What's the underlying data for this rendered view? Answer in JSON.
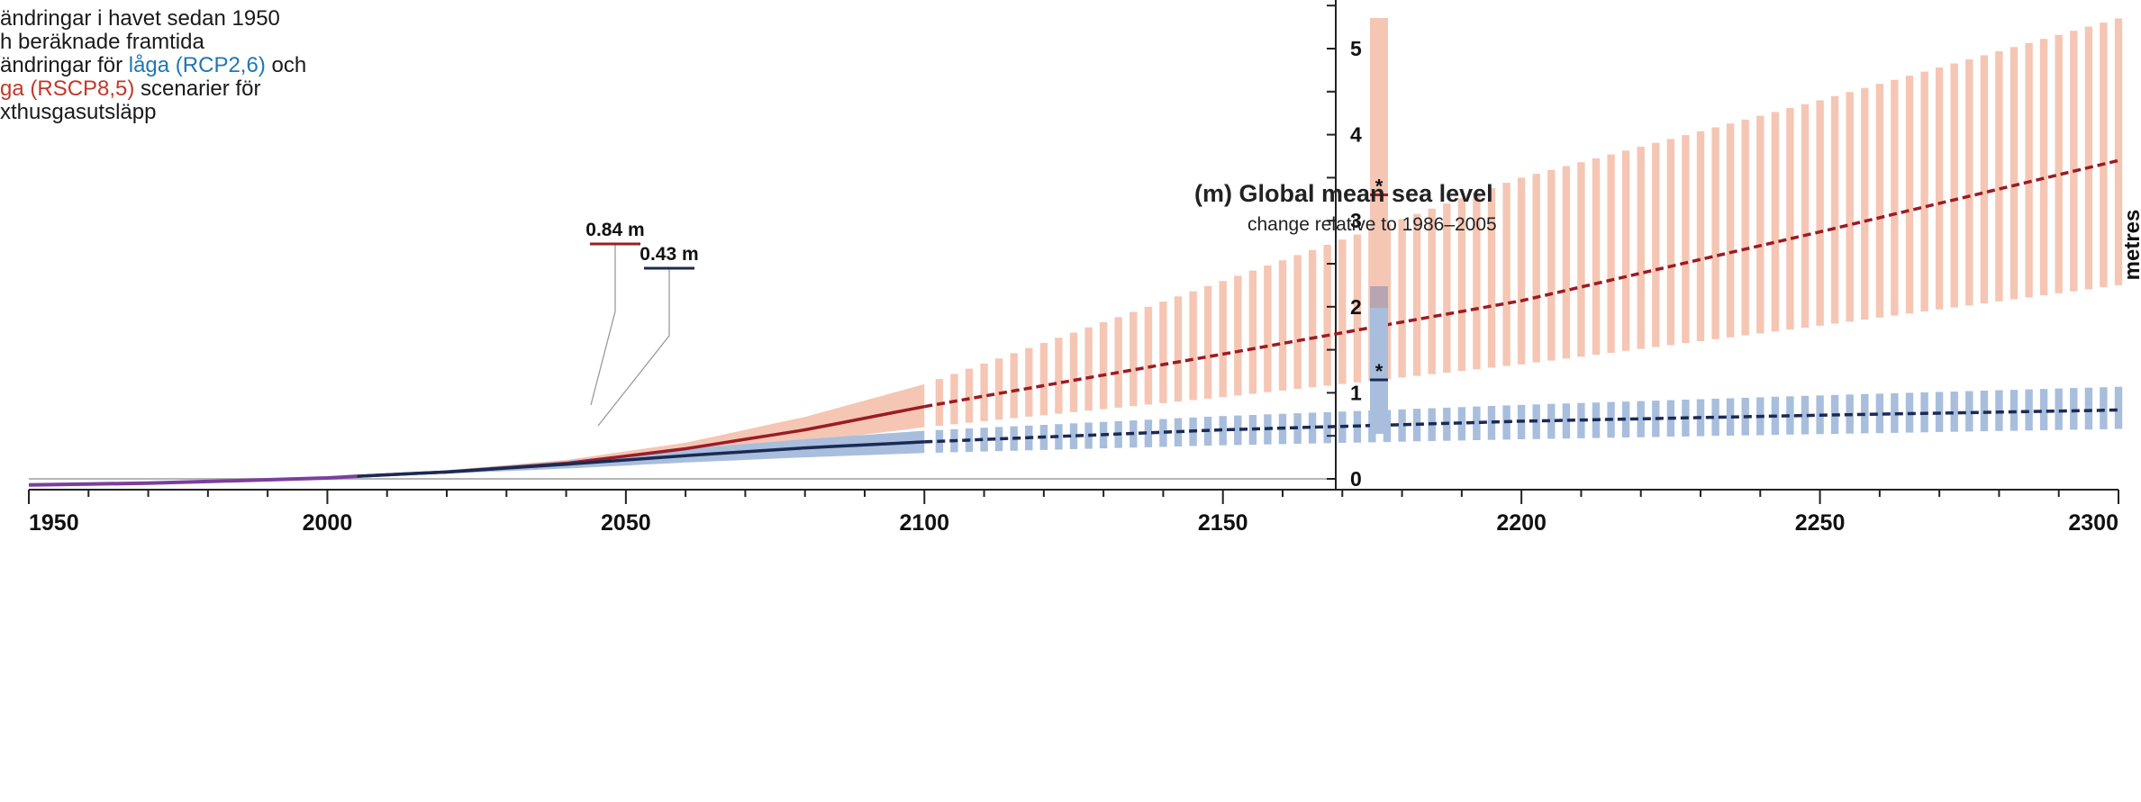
{
  "intro": {
    "line1": "ändringar i havet sedan 1950",
    "line2": "h beräknade framtida",
    "line3_prefix": "ändringar för ",
    "line3_low": "låga (RCP2,6)",
    "line3_suffix": " och",
    "line4_high": "ga (RSCP8,5)",
    "line4_suffix": " scenarier för",
    "line5": "xthusgasutsläpp",
    "low_color": "#1f77b4",
    "high_color": "#c0392b"
  },
  "chart_data": {
    "type": "line",
    "title": "(m)  Global mean sea level",
    "subtitle": "change relative to 1986–2005",
    "ylabel": "metres",
    "xlim": [
      1950,
      2300
    ],
    "ylim": [
      -0.1,
      5.5
    ],
    "xticks": [
      "1950",
      "2000",
      "2050",
      "2100",
      "2150",
      "2200",
      "2250",
      "2300"
    ],
    "yticks": [
      "0",
      "1",
      "2",
      "3",
      "4",
      "5"
    ],
    "grid": false,
    "series": [
      {
        "key": "observed",
        "color": "#7b3f9e",
        "x": [
          1950,
          1960,
          1970,
          1980,
          1990,
          2000,
          2005
        ],
        "y": [
          -0.07,
          -0.06,
          -0.05,
          -0.03,
          -0.01,
          0.01,
          0.03
        ]
      },
      {
        "key": "high",
        "color": "#9b1c24",
        "band_color": "#f5c6b4",
        "x": [
          2005,
          2020,
          2040,
          2060,
          2080,
          2100,
          2150,
          2200,
          2250,
          2300
        ],
        "y": [
          0.03,
          0.08,
          0.18,
          0.35,
          0.57,
          0.84,
          1.45,
          2.07,
          2.87,
          3.7
        ],
        "y_low": [
          0.03,
          0.07,
          0.15,
          0.27,
          0.43,
          0.6,
          0.95,
          1.33,
          1.78,
          2.25
        ],
        "y_high": [
          0.03,
          0.1,
          0.22,
          0.42,
          0.72,
          1.1,
          2.3,
          3.5,
          4.4,
          5.35
        ]
      },
      {
        "key": "low",
        "color": "#1b2a55",
        "band_color": "#a8bedc",
        "x": [
          2005,
          2020,
          2040,
          2060,
          2080,
          2100,
          2150,
          2200,
          2250,
          2300
        ],
        "y": [
          0.03,
          0.08,
          0.17,
          0.27,
          0.36,
          0.43,
          0.57,
          0.67,
          0.74,
          0.8
        ],
        "y_low": [
          0.03,
          0.06,
          0.12,
          0.19,
          0.25,
          0.3,
          0.39,
          0.46,
          0.52,
          0.58
        ],
        "y_high": [
          0.03,
          0.1,
          0.21,
          0.35,
          0.46,
          0.56,
          0.73,
          0.86,
          0.97,
          1.07
        ]
      }
    ],
    "annotations": [
      {
        "label": "0.84 m",
        "x": 2100,
        "y": 0.84,
        "series": "high"
      },
      {
        "label": "0.43 m",
        "x": 2100,
        "y": 0.43,
        "series": "low"
      }
    ],
    "range_bar_2300": {
      "high": {
        "min": 2.0,
        "max": 5.4,
        "median": 3.3
      },
      "low": {
        "min": 0.5,
        "max": 2.2,
        "median": 1.15
      },
      "star": "*"
    }
  }
}
